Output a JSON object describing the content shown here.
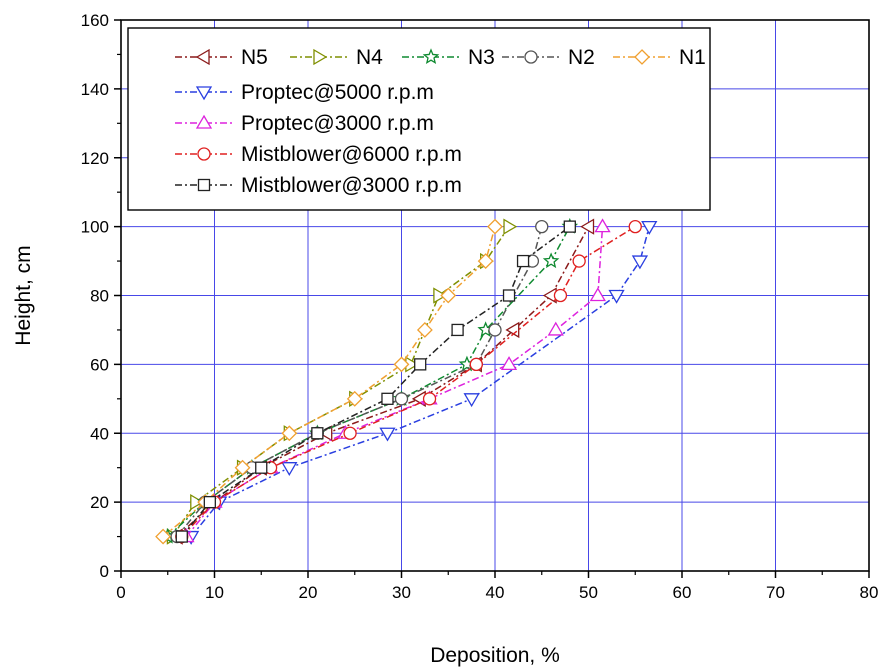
{
  "chart_data": {
    "type": "line",
    "title": "",
    "xlabel": "Deposition, %",
    "ylabel": "Height, cm",
    "xlim": [
      0,
      80
    ],
    "ylim": [
      0,
      160
    ],
    "xticks": [
      "0",
      "10",
      "20",
      "30",
      "40",
      "50",
      "60",
      "70",
      "80"
    ],
    "yticks": [
      "0",
      "20",
      "40",
      "60",
      "80",
      "100",
      "120",
      "140",
      "160"
    ],
    "grid": true,
    "legend_position": "top-left",
    "series": [
      {
        "name": "N5",
        "color": "#8b1a1a",
        "marker": "triangle-left",
        "x": [
          6,
          10,
          15,
          22,
          32,
          38,
          42,
          46,
          50
        ],
        "y": [
          10,
          20,
          30,
          40,
          50,
          60,
          70,
          80,
          100
        ]
      },
      {
        "name": "N4",
        "color": "#7f8f00",
        "marker": "triangle-right",
        "x": [
          5.5,
          8,
          13,
          18,
          25,
          31,
          34,
          39,
          41.5
        ],
        "y": [
          10,
          20,
          30,
          40,
          50,
          60,
          80,
          90,
          100
        ]
      },
      {
        "name": "N3",
        "color": "#0f8a30",
        "marker": "star",
        "x": [
          5,
          9,
          14,
          21,
          30,
          37,
          39,
          46,
          48
        ],
        "y": [
          10,
          20,
          30,
          40,
          50,
          60,
          70,
          90,
          100
        ]
      },
      {
        "name": "N2",
        "color": "#555555",
        "marker": "circle",
        "x": [
          6,
          9,
          14,
          21,
          30,
          38,
          40,
          44,
          45
        ],
        "y": [
          10,
          20,
          30,
          40,
          50,
          60,
          70,
          90,
          100
        ]
      },
      {
        "name": "N1",
        "color": "#f0a030",
        "marker": "diamond",
        "x": [
          4.5,
          9,
          13,
          18,
          25,
          30,
          32.5,
          35,
          39,
          40
        ],
        "y": [
          10,
          20,
          30,
          40,
          50,
          60,
          70,
          80,
          90,
          100
        ]
      },
      {
        "name": "Proptec@5000 r.p.m",
        "color": "#2a3fe0",
        "marker": "triangle-down",
        "x": [
          7.5,
          10.5,
          18,
          28.5,
          37.5,
          53,
          55.5,
          56.5
        ],
        "y": [
          10,
          20,
          30,
          40,
          50,
          80,
          90,
          100
        ]
      },
      {
        "name": "Proptec@3000 r.p.m",
        "color": "#dd22dd",
        "marker": "triangle-up",
        "x": [
          7,
          10,
          16,
          24,
          33,
          41.5,
          46.5,
          51,
          51.5
        ],
        "y": [
          10,
          20,
          30,
          40,
          50,
          60,
          70,
          80,
          100
        ]
      },
      {
        "name": "Mistblower@6000 r.p.m",
        "color": "#e02020",
        "marker": "circle",
        "x": [
          6.5,
          10,
          16,
          24.5,
          33,
          38,
          47,
          49,
          55
        ],
        "y": [
          10,
          20,
          30,
          40,
          50,
          60,
          80,
          90,
          100
        ]
      },
      {
        "name": "Mistblower@3000 r.p.m",
        "color": "#222222",
        "marker": "square",
        "x": [
          6.5,
          9.5,
          15,
          21,
          28.5,
          32,
          36,
          41.5,
          43,
          48
        ],
        "y": [
          10,
          20,
          30,
          40,
          50,
          60,
          70,
          80,
          90,
          100
        ]
      }
    ]
  }
}
